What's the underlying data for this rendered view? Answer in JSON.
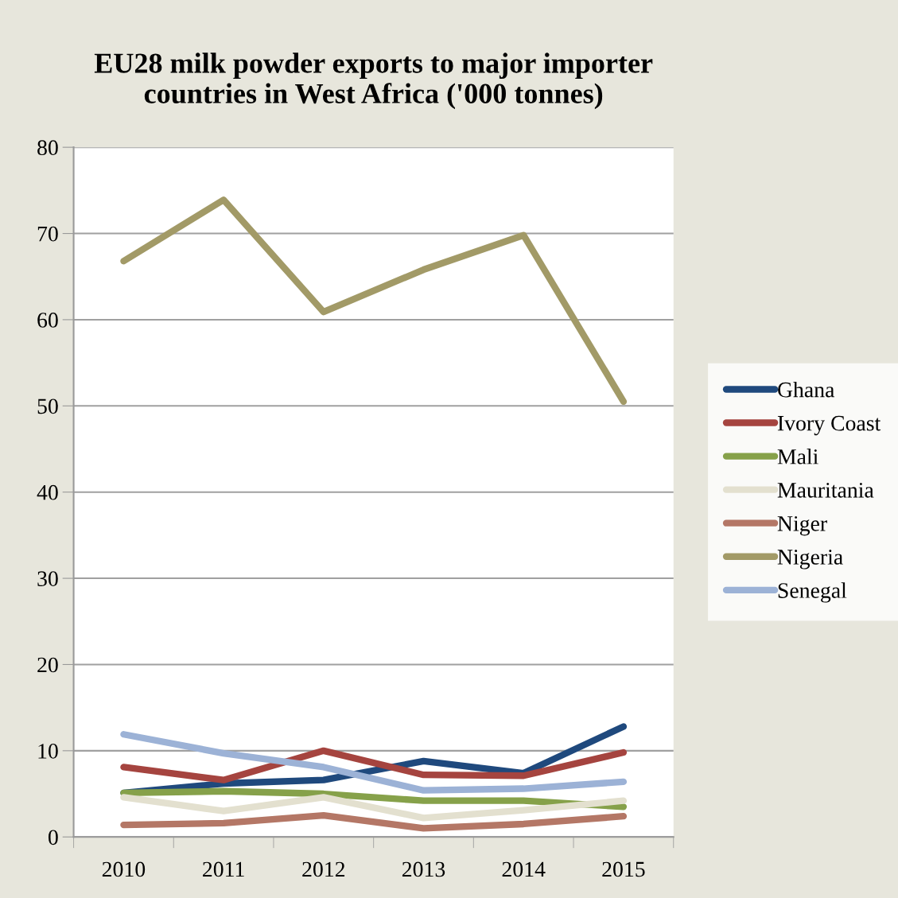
{
  "chart_data": {
    "type": "line",
    "title": "EU28 milk powder exports to major importer\ncountries in West Africa ('000 tonnes)",
    "categories": [
      "2010",
      "2011",
      "2012",
      "2013",
      "2014",
      "2015"
    ],
    "ylim": [
      0,
      80
    ],
    "yticks": [
      0,
      10,
      20,
      30,
      40,
      50,
      60,
      70,
      80
    ],
    "grid": "y",
    "legend": "right",
    "marker": "none",
    "line_style": "solid",
    "series": [
      {
        "name": "Ghana",
        "color": "#1f497d",
        "values": [
          5.1,
          6.2,
          6.6,
          8.8,
          7.4,
          12.8
        ]
      },
      {
        "name": "Ivory Coast",
        "color": "#a5443f",
        "values": [
          8.1,
          6.6,
          10.0,
          7.2,
          7.1,
          9.8
        ]
      },
      {
        "name": "Mali",
        "color": "#86a14a",
        "values": [
          5.1,
          5.3,
          5.0,
          4.2,
          4.2,
          3.5
        ]
      },
      {
        "name": "Mauritania",
        "color": "#e3e0cf",
        "values": [
          4.6,
          3.0,
          4.6,
          2.2,
          3.1,
          4.2
        ]
      },
      {
        "name": "Niger",
        "color": "#b47766",
        "values": [
          1.4,
          1.6,
          2.5,
          1.0,
          1.5,
          2.4
        ]
      },
      {
        "name": "Nigeria",
        "color": "#a29a67",
        "values": [
          66.8,
          73.9,
          60.9,
          65.8,
          69.8,
          50.5
        ]
      },
      {
        "name": "Senegal",
        "color": "#9cb2d6",
        "values": [
          11.9,
          9.7,
          8.1,
          5.4,
          5.6,
          6.4
        ]
      }
    ]
  }
}
